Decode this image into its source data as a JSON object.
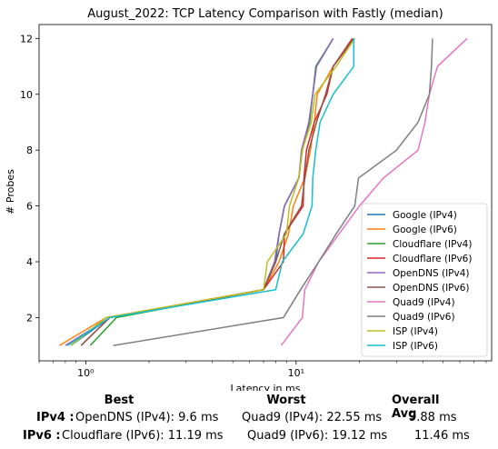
{
  "chart_data": {
    "type": "line",
    "title": "August_2022: TCP Latency Comparison with Fastly (median)",
    "xlabel": "Latency in ms",
    "ylabel": "# Probes",
    "xscale": "log",
    "xlim": [
      0.6,
      85
    ],
    "ylim": [
      0.45,
      12.5
    ],
    "x_ticks": [
      {
        "value": 1,
        "label": "10⁰"
      },
      {
        "value": 10,
        "label": "10¹"
      }
    ],
    "y_ticks": [
      2,
      4,
      6,
      8,
      10,
      12
    ],
    "legend_position": "lower-right",
    "grid": false,
    "series": [
      {
        "name": "Google (IPv4)",
        "color": "#1f77b4",
        "points": [
          [
            0.85,
            1
          ],
          [
            1.3,
            2
          ],
          [
            7.0,
            3
          ],
          [
            8.0,
            4
          ],
          [
            8.3,
            5
          ],
          [
            8.8,
            6
          ],
          [
            10.3,
            7
          ],
          [
            10.7,
            8
          ],
          [
            11.5,
            9
          ],
          [
            12.0,
            10
          ],
          [
            12.5,
            11
          ],
          [
            15.0,
            12
          ]
        ]
      },
      {
        "name": "Google (IPv6)",
        "color": "#ff7f0e",
        "points": [
          [
            0.75,
            1
          ],
          [
            1.25,
            2
          ],
          [
            7.0,
            3
          ],
          [
            8.3,
            4
          ],
          [
            9.2,
            5
          ],
          [
            9.7,
            6
          ],
          [
            11.0,
            7
          ],
          [
            11.7,
            8
          ],
          [
            12.2,
            9
          ],
          [
            12.6,
            10
          ],
          [
            15.0,
            11
          ],
          [
            19.0,
            12
          ]
        ]
      },
      {
        "name": "Cloudflare (IPv4)",
        "color": "#2ca02c",
        "points": [
          [
            1.05,
            1
          ],
          [
            1.4,
            2
          ],
          [
            7.0,
            3
          ],
          [
            7.9,
            4
          ],
          [
            8.3,
            5
          ],
          [
            8.8,
            6
          ],
          [
            10.3,
            7
          ],
          [
            10.7,
            8
          ],
          [
            11.6,
            9
          ],
          [
            12.0,
            10
          ],
          [
            12.4,
            11
          ],
          [
            15.0,
            12
          ]
        ]
      },
      {
        "name": "Cloudflare (IPv6)",
        "color": "#d62728",
        "points": [
          [
            0.95,
            1
          ],
          [
            1.3,
            2
          ],
          [
            7.0,
            3
          ],
          [
            8.7,
            4
          ],
          [
            8.8,
            5
          ],
          [
            10.8,
            6
          ],
          [
            10.9,
            7
          ],
          [
            11.2,
            8
          ],
          [
            12.2,
            9
          ],
          [
            14.0,
            10
          ],
          [
            15.0,
            11
          ],
          [
            18.5,
            12
          ]
        ]
      },
      {
        "name": "OpenDNS (IPv4)",
        "color": "#9467bd",
        "points": [
          [
            0.8,
            1
          ],
          [
            1.3,
            2
          ],
          [
            7.0,
            3
          ],
          [
            7.9,
            4
          ],
          [
            8.3,
            5
          ],
          [
            8.8,
            6
          ],
          [
            10.3,
            7
          ],
          [
            10.6,
            8
          ],
          [
            11.5,
            9
          ],
          [
            12.0,
            10
          ],
          [
            12.5,
            11
          ],
          [
            15.0,
            12
          ]
        ]
      },
      {
        "name": "OpenDNS (IPv6)",
        "color": "#8c564b",
        "points": [
          [
            0.95,
            1
          ],
          [
            1.3,
            2
          ],
          [
            7.0,
            3
          ],
          [
            8.0,
            4
          ],
          [
            8.8,
            5
          ],
          [
            10.6,
            6
          ],
          [
            11.0,
            7
          ],
          [
            11.5,
            8
          ],
          [
            12.5,
            9
          ],
          [
            13.8,
            10
          ],
          [
            15.0,
            11
          ],
          [
            18.8,
            12
          ]
        ]
      },
      {
        "name": "Quad9 (IPv4)",
        "color": "#e377c2",
        "points": [
          [
            8.5,
            1
          ],
          [
            10.7,
            2
          ],
          [
            11.0,
            3
          ],
          [
            12.8,
            4
          ],
          [
            16.0,
            5
          ],
          [
            20.0,
            6
          ],
          [
            26.0,
            7
          ],
          [
            38.0,
            8
          ],
          [
            41.0,
            9
          ],
          [
            43.0,
            10
          ],
          [
            47.0,
            11
          ],
          [
            65.0,
            12
          ]
        ]
      },
      {
        "name": "Quad9 (IPv6)",
        "color": "#7f7f7f",
        "points": [
          [
            1.35,
            1
          ],
          [
            8.7,
            2
          ],
          [
            10.5,
            3
          ],
          [
            12.8,
            4
          ],
          [
            15.5,
            5
          ],
          [
            19.0,
            6
          ],
          [
            19.8,
            7
          ],
          [
            30.0,
            8
          ],
          [
            38.0,
            9
          ],
          [
            43.0,
            10
          ],
          [
            44.0,
            11
          ],
          [
            44.5,
            12
          ]
        ]
      },
      {
        "name": "ISP (IPv4)",
        "color": "#bcbd22",
        "points": [
          [
            0.85,
            1
          ],
          [
            1.25,
            2
          ],
          [
            7.0,
            3
          ],
          [
            7.3,
            4
          ],
          [
            9.0,
            5
          ],
          [
            9.3,
            6
          ],
          [
            10.3,
            7
          ],
          [
            10.7,
            8
          ],
          [
            11.8,
            9
          ],
          [
            12.3,
            10
          ],
          [
            15.5,
            11
          ],
          [
            19.0,
            12
          ]
        ]
      },
      {
        "name": "ISP (IPv6)",
        "color": "#17becf",
        "points": [
          [
            0.82,
            1
          ],
          [
            1.3,
            2
          ],
          [
            8.0,
            3
          ],
          [
            8.6,
            4
          ],
          [
            10.8,
            5
          ],
          [
            11.9,
            6
          ],
          [
            12.0,
            7
          ],
          [
            12.4,
            8
          ],
          [
            13.0,
            9
          ],
          [
            15.0,
            10
          ],
          [
            18.8,
            11
          ],
          [
            18.8,
            12
          ]
        ]
      }
    ]
  },
  "summary": {
    "headers": {
      "best": "Best",
      "worst": "Worst",
      "avg": "Overall Avg"
    },
    "rows": [
      {
        "label": "IPv4 :",
        "best": "OpenDNS (IPv4): 9.6 ms",
        "worst": "Quad9 (IPv4): 22.55 ms",
        "avg": "9.88 ms"
      },
      {
        "label": "IPv6 :",
        "best": "Cloudflare (IPv6): 11.19 ms",
        "worst": "Quad9 (IPv6): 19.12 ms",
        "avg": "11.46 ms"
      }
    ]
  }
}
